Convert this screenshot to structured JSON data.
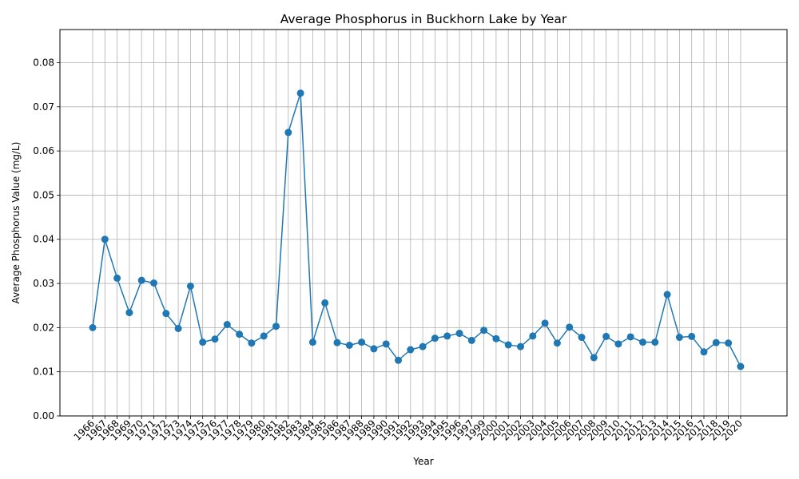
{
  "chart_data": {
    "type": "line",
    "title": "Average Phosphorus in Buckhorn Lake by Year",
    "xlabel": "Year",
    "ylabel": "Average Phosphorus Value (mg/L)",
    "ylim": [
      0,
      0.0875
    ],
    "yticks": [
      "0.00",
      "0.01",
      "0.02",
      "0.03",
      "0.04",
      "0.05",
      "0.06",
      "0.07",
      "0.08"
    ],
    "grid": true,
    "color": "#1f77b4",
    "marker": "circle",
    "x": [
      1966,
      1967,
      1968,
      1969,
      1970,
      1971,
      1972,
      1973,
      1974,
      1975,
      1976,
      1977,
      1978,
      1979,
      1980,
      1981,
      1982,
      1983,
      1984,
      1985,
      1986,
      1987,
      1988,
      1989,
      1990,
      1991,
      1992,
      1993,
      1994,
      1995,
      1996,
      1997,
      1999,
      2000,
      2001,
      2002,
      2003,
      2004,
      2005,
      2006,
      2007,
      2008,
      2009,
      2010,
      2011,
      2012,
      2013,
      2014,
      2015,
      2016,
      2017,
      2018,
      2019,
      2020
    ],
    "y": [
      0.02,
      0.04,
      0.0312,
      0.0234,
      0.0307,
      0.0301,
      0.0232,
      0.0198,
      0.0294,
      0.0167,
      0.0174,
      0.0207,
      0.0185,
      0.0165,
      0.0181,
      0.0203,
      0.0642,
      0.0731,
      0.0167,
      0.0256,
      0.0166,
      0.016,
      0.0167,
      0.0152,
      0.0163,
      0.0126,
      0.015,
      0.0157,
      0.0176,
      0.0181,
      0.0187,
      0.0171,
      0.0194,
      0.0175,
      0.0161,
      0.0157,
      0.0181,
      0.021,
      0.0165,
      0.0201,
      0.0178,
      0.0132,
      0.018,
      0.0163,
      0.0179,
      0.0167,
      0.0167,
      0.0275,
      0.0178,
      0.018,
      0.0145,
      0.0166,
      0.0165,
      0.0112
    ]
  }
}
